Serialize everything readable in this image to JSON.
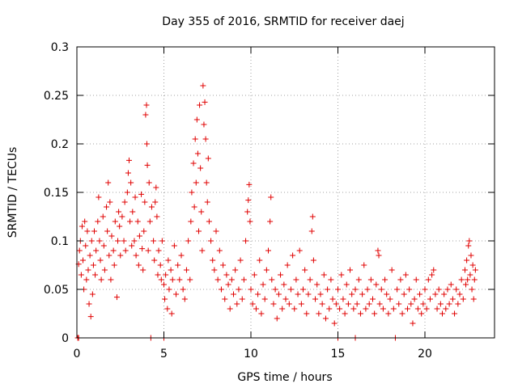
{
  "chart_data": {
    "type": "scatter",
    "title": "Day 355 of 2016, SRMTID for receiver daej",
    "xlabel": "GPS time / hours",
    "ylabel": "SRMTID / TECUs",
    "xlim": [
      0,
      24
    ],
    "ylim": [
      0,
      0.3
    ],
    "xticks": [
      0,
      5,
      10,
      15,
      20
    ],
    "xtick_labels": [
      "0",
      "5",
      "10",
      "15",
      "20"
    ],
    "yticks": [
      0,
      0.05,
      0.1,
      0.15,
      0.2,
      0.25,
      0.3
    ],
    "ytick_labels": [
      "0",
      "0.05",
      "0.1",
      "0.15",
      "0.2",
      "0.25",
      "0.3"
    ],
    "grid": true,
    "marker": "plus",
    "series": [
      {
        "color": "#e00000",
        "points": [
          [
            0.05,
            0.0
          ],
          [
            0.1,
            0.0
          ],
          [
            0.1,
            0.076
          ],
          [
            0.15,
            0.09
          ],
          [
            0.2,
            0.1
          ],
          [
            0.25,
            0.065
          ],
          [
            0.3,
            0.115
          ],
          [
            0.35,
            0.08
          ],
          [
            0.4,
            0.05
          ],
          [
            0.45,
            0.12
          ],
          [
            0.5,
            0.095
          ],
          [
            0.55,
            0.06
          ],
          [
            0.6,
            0.11
          ],
          [
            0.65,
            0.07
          ],
          [
            0.7,
            0.035
          ],
          [
            0.75,
            0.085
          ],
          [
            0.8,
            0.022
          ],
          [
            0.85,
            0.1
          ],
          [
            0.9,
            0.045
          ],
          [
            0.95,
            0.075
          ],
          [
            1.0,
            0.11
          ],
          [
            1.05,
            0.065
          ],
          [
            1.1,
            0.09
          ],
          [
            1.2,
            0.12
          ],
          [
            1.25,
            0.145
          ],
          [
            1.3,
            0.1
          ],
          [
            1.35,
            0.08
          ],
          [
            1.4,
            0.06
          ],
          [
            1.5,
            0.125
          ],
          [
            1.55,
            0.095
          ],
          [
            1.6,
            0.07
          ],
          [
            1.7,
            0.135
          ],
          [
            1.75,
            0.11
          ],
          [
            1.8,
            0.16
          ],
          [
            1.85,
            0.085
          ],
          [
            1.9,
            0.14
          ],
          [
            1.95,
            0.06
          ],
          [
            2.0,
            0.105
          ],
          [
            2.1,
            0.09
          ],
          [
            2.15,
            0.075
          ],
          [
            2.2,
            0.12
          ],
          [
            2.3,
            0.042
          ],
          [
            2.35,
            0.1
          ],
          [
            2.4,
            0.13
          ],
          [
            2.45,
            0.115
          ],
          [
            2.5,
            0.085
          ],
          [
            2.6,
            0.125
          ],
          [
            2.7,
            0.1
          ],
          [
            2.75,
            0.14
          ],
          [
            2.8,
            0.09
          ],
          [
            2.9,
            0.15
          ],
          [
            2.95,
            0.17
          ],
          [
            3.0,
            0.183
          ],
          [
            3.05,
            0.12
          ],
          [
            3.1,
            0.16
          ],
          [
            3.15,
            0.095
          ],
          [
            3.2,
            0.13
          ],
          [
            3.3,
            0.1
          ],
          [
            3.35,
            0.145
          ],
          [
            3.4,
            0.085
          ],
          [
            3.5,
            0.12
          ],
          [
            3.55,
            0.075
          ],
          [
            3.6,
            0.105
          ],
          [
            3.7,
            0.148
          ],
          [
            3.75,
            0.092
          ],
          [
            3.8,
            0.07
          ],
          [
            3.85,
            0.11
          ],
          [
            3.9,
            0.14
          ],
          [
            3.95,
            0.23
          ],
          [
            4.0,
            0.24
          ],
          [
            4.02,
            0.2
          ],
          [
            4.05,
            0.178
          ],
          [
            4.1,
            0.09
          ],
          [
            4.15,
            0.16
          ],
          [
            4.2,
            0.12
          ],
          [
            4.25,
            0.0
          ],
          [
            4.3,
            0.135
          ],
          [
            4.4,
            0.1
          ],
          [
            4.45,
            0.08
          ],
          [
            4.5,
            0.14
          ],
          [
            4.55,
            0.155
          ],
          [
            4.6,
            0.125
          ],
          [
            4.65,
            0.065
          ],
          [
            4.7,
            0.09
          ],
          [
            4.8,
            0.075
          ],
          [
            4.85,
            0.06
          ],
          [
            4.9,
            0.1
          ],
          [
            5.0,
            0.0
          ],
          [
            5.0,
            0.055
          ],
          [
            5.05,
            0.04
          ],
          [
            5.1,
            0.065
          ],
          [
            5.2,
            0.03
          ],
          [
            5.25,
            0.08
          ],
          [
            5.3,
            0.05
          ],
          [
            5.4,
            0.07
          ],
          [
            5.45,
            0.025
          ],
          [
            5.5,
            0.06
          ],
          [
            5.6,
            0.095
          ],
          [
            5.7,
            0.045
          ],
          [
            5.8,
            0.075
          ],
          [
            5.9,
            0.06
          ],
          [
            6.0,
            0.085
          ],
          [
            6.1,
            0.05
          ],
          [
            6.2,
            0.04
          ],
          [
            6.3,
            0.07
          ],
          [
            6.4,
            0.1
          ],
          [
            6.5,
            0.06
          ],
          [
            6.55,
            0.12
          ],
          [
            6.6,
            0.15
          ],
          [
            6.7,
            0.18
          ],
          [
            6.75,
            0.135
          ],
          [
            6.8,
            0.205
          ],
          [
            6.85,
            0.16
          ],
          [
            6.9,
            0.225
          ],
          [
            6.95,
            0.19
          ],
          [
            7.0,
            0.11
          ],
          [
            7.05,
            0.24
          ],
          [
            7.1,
            0.175
          ],
          [
            7.15,
            0.13
          ],
          [
            7.2,
            0.09
          ],
          [
            7.25,
            0.26
          ],
          [
            7.3,
            0.22
          ],
          [
            7.35,
            0.243
          ],
          [
            7.4,
            0.205
          ],
          [
            7.45,
            0.16
          ],
          [
            7.5,
            0.14
          ],
          [
            7.55,
            0.185
          ],
          [
            7.6,
            0.12
          ],
          [
            7.7,
            0.1
          ],
          [
            7.8,
            0.08
          ],
          [
            7.9,
            0.07
          ],
          [
            8.0,
            0.11
          ],
          [
            8.1,
            0.06
          ],
          [
            8.2,
            0.09
          ],
          [
            8.3,
            0.05
          ],
          [
            8.4,
            0.075
          ],
          [
            8.5,
            0.04
          ],
          [
            8.6,
            0.065
          ],
          [
            8.7,
            0.055
          ],
          [
            8.8,
            0.03
          ],
          [
            8.9,
            0.06
          ],
          [
            9.0,
            0.045
          ],
          [
            9.1,
            0.07
          ],
          [
            9.2,
            0.035
          ],
          [
            9.3,
            0.05
          ],
          [
            9.4,
            0.08
          ],
          [
            9.5,
            0.04
          ],
          [
            9.6,
            0.06
          ],
          [
            9.7,
            0.1
          ],
          [
            9.8,
            0.13
          ],
          [
            9.85,
            0.142
          ],
          [
            9.9,
            0.158
          ],
          [
            9.95,
            0.12
          ],
          [
            10.0,
            0.05
          ],
          [
            10.1,
            0.035
          ],
          [
            10.2,
            0.065
          ],
          [
            10.3,
            0.03
          ],
          [
            10.4,
            0.045
          ],
          [
            10.5,
            0.08
          ],
          [
            10.6,
            0.025
          ],
          [
            10.7,
            0.055
          ],
          [
            10.8,
            0.04
          ],
          [
            10.9,
            0.07
          ],
          [
            11.0,
            0.09
          ],
          [
            11.1,
            0.12
          ],
          [
            11.15,
            0.145
          ],
          [
            11.2,
            0.06
          ],
          [
            11.3,
            0.035
          ],
          [
            11.4,
            0.05
          ],
          [
            11.5,
            0.02
          ],
          [
            11.6,
            0.045
          ],
          [
            11.7,
            0.065
          ],
          [
            11.8,
            0.03
          ],
          [
            11.9,
            0.055
          ],
          [
            12.0,
            0.04
          ],
          [
            12.1,
            0.075
          ],
          [
            12.2,
            0.035
          ],
          [
            12.3,
            0.05
          ],
          [
            12.4,
            0.085
          ],
          [
            12.5,
            0.03
          ],
          [
            12.6,
            0.06
          ],
          [
            12.7,
            0.045
          ],
          [
            12.8,
            0.09
          ],
          [
            12.9,
            0.035
          ],
          [
            13.0,
            0.05
          ],
          [
            13.1,
            0.07
          ],
          [
            13.2,
            0.025
          ],
          [
            13.3,
            0.045
          ],
          [
            13.4,
            0.06
          ],
          [
            13.5,
            0.11
          ],
          [
            13.55,
            0.125
          ],
          [
            13.6,
            0.08
          ],
          [
            13.7,
            0.04
          ],
          [
            13.8,
            0.055
          ],
          [
            13.9,
            0.025
          ],
          [
            14.0,
            0.045
          ],
          [
            14.1,
            0.035
          ],
          [
            14.2,
            0.065
          ],
          [
            14.3,
            0.02
          ],
          [
            14.4,
            0.05
          ],
          [
            14.5,
            0.03
          ],
          [
            14.6,
            0.06
          ],
          [
            14.7,
            0.04
          ],
          [
            14.8,
            0.015
          ],
          [
            14.9,
            0.035
          ],
          [
            15.0,
            0.05
          ],
          [
            15.0,
            0.0
          ],
          [
            15.1,
            0.03
          ],
          [
            15.2,
            0.065
          ],
          [
            15.3,
            0.04
          ],
          [
            15.4,
            0.025
          ],
          [
            15.5,
            0.055
          ],
          [
            15.6,
            0.035
          ],
          [
            15.7,
            0.07
          ],
          [
            15.8,
            0.045
          ],
          [
            15.9,
            0.03
          ],
          [
            16.0,
            0.0
          ],
          [
            16.0,
            0.05
          ],
          [
            16.1,
            0.035
          ],
          [
            16.2,
            0.06
          ],
          [
            16.3,
            0.025
          ],
          [
            16.4,
            0.045
          ],
          [
            16.5,
            0.075
          ],
          [
            16.6,
            0.03
          ],
          [
            16.7,
            0.05
          ],
          [
            16.8,
            0.035
          ],
          [
            16.9,
            0.06
          ],
          [
            17.0,
            0.04
          ],
          [
            17.1,
            0.025
          ],
          [
            17.2,
            0.055
          ],
          [
            17.3,
            0.09
          ],
          [
            17.35,
            0.085
          ],
          [
            17.4,
            0.035
          ],
          [
            17.5,
            0.05
          ],
          [
            17.6,
            0.03
          ],
          [
            17.7,
            0.06
          ],
          [
            17.8,
            0.045
          ],
          [
            17.9,
            0.025
          ],
          [
            18.0,
            0.04
          ],
          [
            18.1,
            0.07
          ],
          [
            18.2,
            0.03
          ],
          [
            18.3,
            0.0
          ],
          [
            18.4,
            0.05
          ],
          [
            18.5,
            0.035
          ],
          [
            18.6,
            0.06
          ],
          [
            18.7,
            0.025
          ],
          [
            18.8,
            0.045
          ],
          [
            18.9,
            0.065
          ],
          [
            19.0,
            0.03
          ],
          [
            19.1,
            0.05
          ],
          [
            19.2,
            0.035
          ],
          [
            19.3,
            0.015
          ],
          [
            19.4,
            0.04
          ],
          [
            19.5,
            0.06
          ],
          [
            19.6,
            0.03
          ],
          [
            19.7,
            0.045
          ],
          [
            19.8,
            0.025
          ],
          [
            19.9,
            0.035
          ],
          [
            20.0,
            0.05
          ],
          [
            20.1,
            0.03
          ],
          [
            20.2,
            0.06
          ],
          [
            20.3,
            0.04
          ],
          [
            20.4,
            0.065
          ],
          [
            20.5,
            0.07
          ],
          [
            20.6,
            0.045
          ],
          [
            20.7,
            0.03
          ],
          [
            20.8,
            0.05
          ],
          [
            20.9,
            0.035
          ],
          [
            21.0,
            0.025
          ],
          [
            21.1,
            0.045
          ],
          [
            21.2,
            0.03
          ],
          [
            21.3,
            0.05
          ],
          [
            21.4,
            0.035
          ],
          [
            21.5,
            0.055
          ],
          [
            21.6,
            0.04
          ],
          [
            21.7,
            0.025
          ],
          [
            21.8,
            0.05
          ],
          [
            21.9,
            0.035
          ],
          [
            22.0,
            0.045
          ],
          [
            22.1,
            0.06
          ],
          [
            22.2,
            0.04
          ],
          [
            22.3,
            0.07
          ],
          [
            22.35,
            0.055
          ],
          [
            22.4,
            0.08
          ],
          [
            22.45,
            0.06
          ],
          [
            22.5,
            0.095
          ],
          [
            22.55,
            0.1
          ],
          [
            22.6,
            0.065
          ],
          [
            22.65,
            0.085
          ],
          [
            22.7,
            0.05
          ],
          [
            22.75,
            0.075
          ],
          [
            22.8,
            0.04
          ],
          [
            22.85,
            0.06
          ],
          [
            22.9,
            0.07
          ]
        ]
      }
    ]
  }
}
